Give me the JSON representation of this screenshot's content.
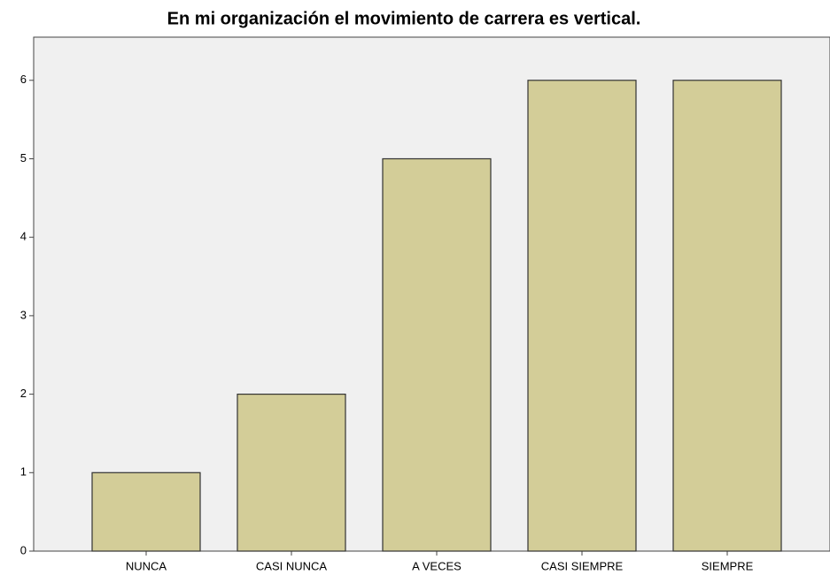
{
  "chart_data": {
    "type": "bar",
    "title": "En mi organización el movimiento de carrera es vertical.",
    "categories": [
      "NUNCA",
      "CASI NUNCA",
      "A VECES",
      "CASI SIEMPRE",
      "SIEMPRE"
    ],
    "values": [
      1,
      2,
      5,
      6,
      6
    ],
    "color": "#d3cd98",
    "ylim": [
      0,
      6.55
    ],
    "yticks": [
      0,
      1,
      2,
      3,
      4,
      5,
      6
    ],
    "grid": false
  }
}
